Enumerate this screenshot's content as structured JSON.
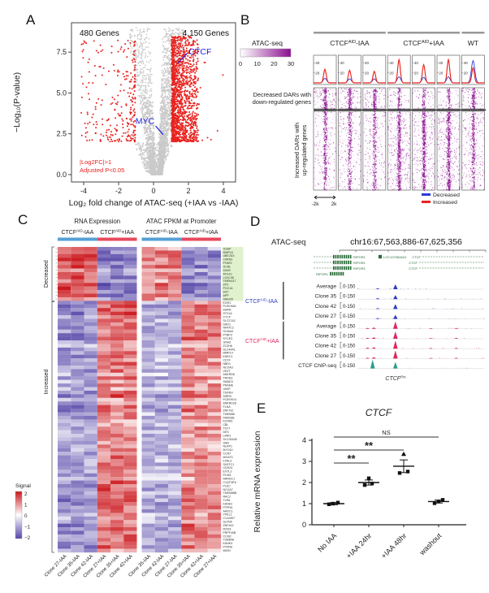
{
  "panels": {
    "A": "A",
    "B": "B",
    "C": "C",
    "D": "D",
    "E": "E"
  },
  "chart_data": [
    {
      "panel": "A",
      "type": "scatter",
      "counts_left": "480 Genes",
      "counts_right": "4,150 Genes",
      "n_down_genes": 480,
      "n_up_genes": 4150,
      "xlabel": "Log₂ fold change of ATAC-seq (+IAA vs -IAA)",
      "ylabel": "−Log₁₀(P-value)",
      "xticks": [
        -4,
        -2,
        0,
        2,
        4
      ],
      "ytick_labels": [
        "0.0",
        "2.5",
        "5.0",
        "7.5"
      ],
      "yticks": [
        0,
        2.5,
        5,
        7.5
      ],
      "xlim": [
        -4.7,
        4.7
      ],
      "ylim": [
        -0.45,
        9.3
      ],
      "highlight": [
        {
          "gene": "CTCF",
          "x": 1.35,
          "y": 6.8
        },
        {
          "gene": "MYC",
          "x": 0.55,
          "y": 2.45
        }
      ],
      "threshold_text": [
        "|Log2FC|>1",
        "Adjusted P<0.05"
      ],
      "colors": {
        "sig": "#e8231f",
        "ns": "#c9c9c9",
        "label": "#2323e0"
      }
    },
    {
      "panel": "B",
      "type": "heatmap",
      "assay": "ATAC-seq",
      "colorbar_ticks": [
        "0",
        "10",
        "20",
        "30"
      ],
      "heat_color": "#8b0f8f",
      "groups": [
        {
          "base": "CTCF",
          "sup": "AID",
          "suffix": "-IAA",
          "cols": 3
        },
        {
          "base": "CTCF",
          "sup": "AID",
          "suffix": "+IAA",
          "cols": 3
        },
        {
          "base": "WT",
          "sup": "",
          "suffix": "",
          "cols": 1
        }
      ],
      "profile_ytick_labels": [
        "40",
        "20"
      ],
      "profiles": {
        "red": [
          27,
          25,
          23,
          46,
          36,
          46,
          30
        ],
        "blue": [
          9,
          8,
          8,
          12,
          11,
          12,
          44
        ]
      },
      "blocks": [
        {
          "name": "decreased",
          "label": [
            "Decreased DARs with",
            "down-regulated genes"
          ],
          "density": [
            200,
            190,
            180,
            110,
            100,
            100,
            170
          ]
        },
        {
          "name": "increased",
          "label": [
            "Increased DARs with",
            "up-regulated genes"
          ],
          "density": [
            430,
            410,
            390,
            700,
            660,
            700,
            470
          ]
        }
      ],
      "x_window": [
        "-2k",
        "2k"
      ],
      "legend": [
        {
          "label": "Decreased",
          "color": "#2b3bd6"
        },
        {
          "label": "Increased",
          "color": "#e8231f"
        }
      ]
    },
    {
      "panel": "C",
      "type": "heatmap",
      "group_headers": [
        "RNA Expression",
        "ATAC FPKM at Promoter"
      ],
      "subheaders": [
        {
          "base": "CTCF",
          "sup": "AID",
          "suffix": "-IAA"
        },
        {
          "base": "CTCF",
          "sup": "AID",
          "suffix": "+IAA"
        },
        {
          "base": "CTCF",
          "sup": "AID",
          "suffix": "-IAA"
        },
        {
          "base": "CTCF",
          "sup": "AID",
          "suffix": "+IAA"
        }
      ],
      "subheader_bar_colors": [
        "#54a1d6",
        "#e84a5f",
        "#54a1d6",
        "#e84a5f"
      ],
      "row_blocks": [
        {
          "label": "Decreased",
          "n": 15
        },
        {
          "label": "Increased",
          "n": 70
        }
      ],
      "block_means": {
        "decreased": [
          1.25,
          -1.25,
          0.95,
          -1.15
        ],
        "increased": [
          -1.0,
          1.05,
          -0.75,
          0.95
        ]
      },
      "genes": [
        "GSAP",
        "MMP16",
        "UBE2D3",
        "LRRN3",
        "FFAR2",
        "OCRL",
        "JAM3",
        "ATG10",
        "LGALS8",
        "TMEM117",
        "ZP3",
        "POC1A",
        "DST",
        "APP",
        "SNHG5",
        "EGR1",
        "PLEKHA6",
        "AHRR",
        "STX1A",
        "CTCF",
        "SLC27A2",
        "DAD1",
        "NFATC2",
        "S100A4",
        "PTBP3",
        "SYCE3",
        "GNAZ",
        "ZC3H6",
        "SLC44A1",
        "MMP14",
        "KNDC1",
        "CD74",
        "NBR1",
        "NCOA3",
        "VEZT",
        "ANKRD6",
        "TRDD3",
        "SMAD3",
        "PRAME",
        "VASP",
        "TDRKH",
        "SIRPA",
        "PLEKHG4",
        "ANKRD28",
        "FLNA",
        "ZNF792",
        "TMEM88",
        "PARD6B",
        "KCNK6",
        "CBL",
        "TCF7",
        "DES",
        "LIMK1",
        "SLC25A45",
        "SNN",
        "NLRP1",
        "MYO10",
        "CCR7",
        "MGAT3",
        "F2RL3",
        "SH3TC1",
        "CDH24",
        "EXTL3",
        "PLIN3",
        "ARRDC1",
        "C1QTNF6",
        "PLEC",
        "NCOA7",
        "TMEM88B",
        "RAC2",
        "TLR6",
        "KANK2",
        "PTPRA",
        "AHDC1",
        "YPEL1",
        "C12orf57",
        "SLFN5",
        "ZNF443",
        "MXD3",
        "PRPF40B",
        "CCM2",
        "TUBB4A",
        "KANK3",
        "PTPRE",
        "MIDN"
      ],
      "col_labels": [
        "Clone 27-IAA",
        "Clone 35-IAA",
        "Clone 42-IAA",
        "Clone 27+IAA",
        "Clone 35+IAA",
        "Clone 42+IAA",
        "Clone 35-IAA",
        "Clone 42-IAA",
        "Clone 27-IAA",
        "Clone 35+IAA",
        "Clone 42+IAA",
        "Clone 27+IAA"
      ],
      "legend": {
        "title": "Signal",
        "tick_labels": [
          "2",
          "1",
          "0",
          "−1",
          "−2"
        ]
      },
      "colors": {
        "pos": "#cb181d",
        "neg": "#5646a8"
      }
    },
    {
      "panel": "D",
      "type": "genome-tracks",
      "assay": "ATAC-seq",
      "locus": "chr16:67,563,886-67,625,356",
      "gene_annotations": {
        "left_gene": "RIPOR1",
        "mid_gene": "LOC107984610",
        "right_gene": "CTCF",
        "color": "#276b37"
      },
      "track_groups": [
        {
          "base": "CTCF",
          "sup": "AID",
          "suffix": "-IAA",
          "color": "#2f3dbf",
          "tracks": [
            "Average",
            "Clone 35",
            "Clone 42",
            "Clone 27"
          ],
          "range": "0-150",
          "peak_main": [
            6,
            5,
            6,
            5
          ]
        },
        {
          "base": "CTCF",
          "sup": "AID",
          "suffix": "+IAA",
          "color": "#e0265c",
          "tracks": [
            "Average",
            "Clone 35",
            "Clone 42",
            "Clone 27"
          ],
          "range": "0-150",
          "peak_main": [
            9,
            9,
            10,
            10
          ]
        }
      ],
      "chip_track": {
        "label": "CTCF ChIP-seq",
        "range": "0-150",
        "color": "#2a9d8f",
        "peaks": [
          [
            0.12,
            11
          ],
          [
            0.3,
            8
          ]
        ]
      },
      "site_label": {
        "base": "CTCF",
        "sup": "Pro"
      }
    },
    {
      "panel": "E",
      "type": "scatter",
      "title": "CTCF",
      "ylabel": "Relative mRNA expression",
      "yticks": [
        0,
        1,
        2,
        3,
        4
      ],
      "categories": [
        "No IAA",
        "+IAA 24hr",
        "+IAA 48hr",
        "washout"
      ],
      "points": [
        [
          0.97,
          1.0,
          1.05
        ],
        [
          1.88,
          1.95,
          2.2
        ],
        [
          2.45,
          2.52,
          3.35
        ],
        [
          1.02,
          1.1,
          1.18
        ]
      ],
      "means": [
        1.0,
        2.0,
        2.77,
        1.1
      ],
      "sem": [
        0.05,
        0.12,
        0.3,
        0.07
      ],
      "significance": [
        {
          "from": 0,
          "to": 1,
          "label": "**",
          "level": 1
        },
        {
          "from": 0,
          "to": 2,
          "label": "**",
          "level": 2
        },
        {
          "from": 0,
          "to": 3,
          "label": "NS",
          "level": 3
        }
      ]
    }
  ]
}
